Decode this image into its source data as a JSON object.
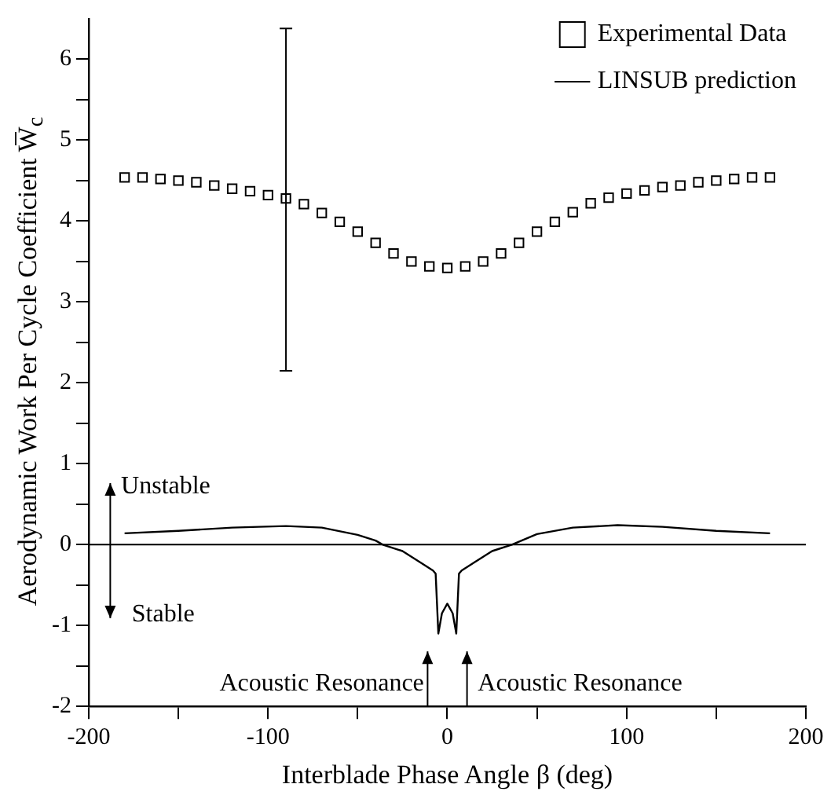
{
  "chart_data": {
    "type": "scatter",
    "xlabel": "Interblade Phase Angle β (deg)",
    "ylabel": "Aerodynamic Work Per Cycle Coefficient W̅$_{c}$",
    "xlim": [
      -200,
      200
    ],
    "xticks": [
      -200,
      {
        "value": -150,
        "label": null
      },
      -100,
      {
        "value": -50,
        "label": null
      },
      0,
      {
        "value": 50,
        "label": null
      },
      100,
      {
        "value": 150,
        "label": null
      },
      200
    ],
    "ylim": [
      -2,
      6.5
    ],
    "yticks": [
      -2,
      {
        "value": -1.5,
        "label": null
      },
      -1,
      {
        "value": -0.5,
        "label": null
      },
      0,
      {
        "value": 0.5,
        "label": null
      },
      1,
      {
        "value": 1.5,
        "label": null
      },
      2,
      {
        "value": 2.5,
        "label": null
      },
      3,
      {
        "value": 3.5,
        "label": null
      },
      4,
      {
        "value": 4.5,
        "label": null
      },
      5,
      {
        "value": 5.5,
        "label": null
      },
      6
    ],
    "grid": false,
    "legend": "top right",
    "series": [
      {
        "name": "Experimental Data",
        "marker": "square",
        "color": "#000000",
        "x": [
          -180,
          -170,
          -160,
          -150,
          -140,
          -130,
          -120,
          -110,
          -100,
          -90,
          -80,
          -70,
          -60,
          -50,
          -40,
          -30,
          -20,
          -10,
          0,
          10,
          20,
          30,
          40,
          50,
          60,
          70,
          80,
          90,
          100,
          110,
          120,
          130,
          140,
          150,
          160,
          170,
          180
        ],
        "values": [
          4.54,
          4.54,
          4.52,
          4.5,
          4.48,
          4.44,
          4.4,
          4.37,
          4.32,
          4.28,
          4.21,
          4.1,
          3.99,
          3.87,
          3.73,
          3.6,
          3.5,
          3.44,
          3.42,
          3.44,
          3.5,
          3.6,
          3.73,
          3.87,
          3.99,
          4.11,
          4.22,
          4.29,
          4.34,
          4.38,
          4.42,
          4.44,
          4.48,
          4.5,
          4.52,
          4.54,
          4.54
        ],
        "errors": [
          null,
          null,
          null,
          null,
          null,
          null,
          null,
          null,
          null,
          [
            2.15,
            6.38
          ],
          null,
          null,
          null,
          null,
          null,
          null,
          null,
          null,
          null,
          null,
          null,
          null,
          null,
          null,
          null,
          null,
          null,
          null,
          null,
          null,
          null,
          null,
          null,
          null,
          null,
          null,
          null
        ]
      },
      {
        "name": "LINSUB prediction",
        "type": "line",
        "marker": "none",
        "line_style": "solid",
        "color": "#000000",
        "x": [
          -180,
          -150,
          -120,
          -90,
          -70,
          -50,
          -40,
          -36,
          -25,
          -15,
          -8,
          -6.5,
          -5,
          -3,
          0,
          3,
          5,
          6.5,
          8,
          15,
          25,
          36,
          50,
          70,
          95,
          120,
          150,
          180
        ],
        "values": [
          0.14,
          0.17,
          0.21,
          0.23,
          0.21,
          0.12,
          0.05,
          0,
          -0.08,
          -0.22,
          -0.32,
          -0.36,
          -1.1,
          -0.85,
          -0.73,
          -0.85,
          -1.1,
          -0.36,
          -0.32,
          -0.22,
          -0.08,
          0,
          0.13,
          0.21,
          0.24,
          0.22,
          0.17,
          0.14
        ]
      }
    ],
    "ref_lines": [
      {
        "axis": "y",
        "value": 0,
        "color": "#000000",
        "line_style": "solid"
      }
    ],
    "annotations": [
      "Unstable",
      "Stable",
      "Acoustic Resonance",
      "Acoustic Resonance"
    ]
  }
}
